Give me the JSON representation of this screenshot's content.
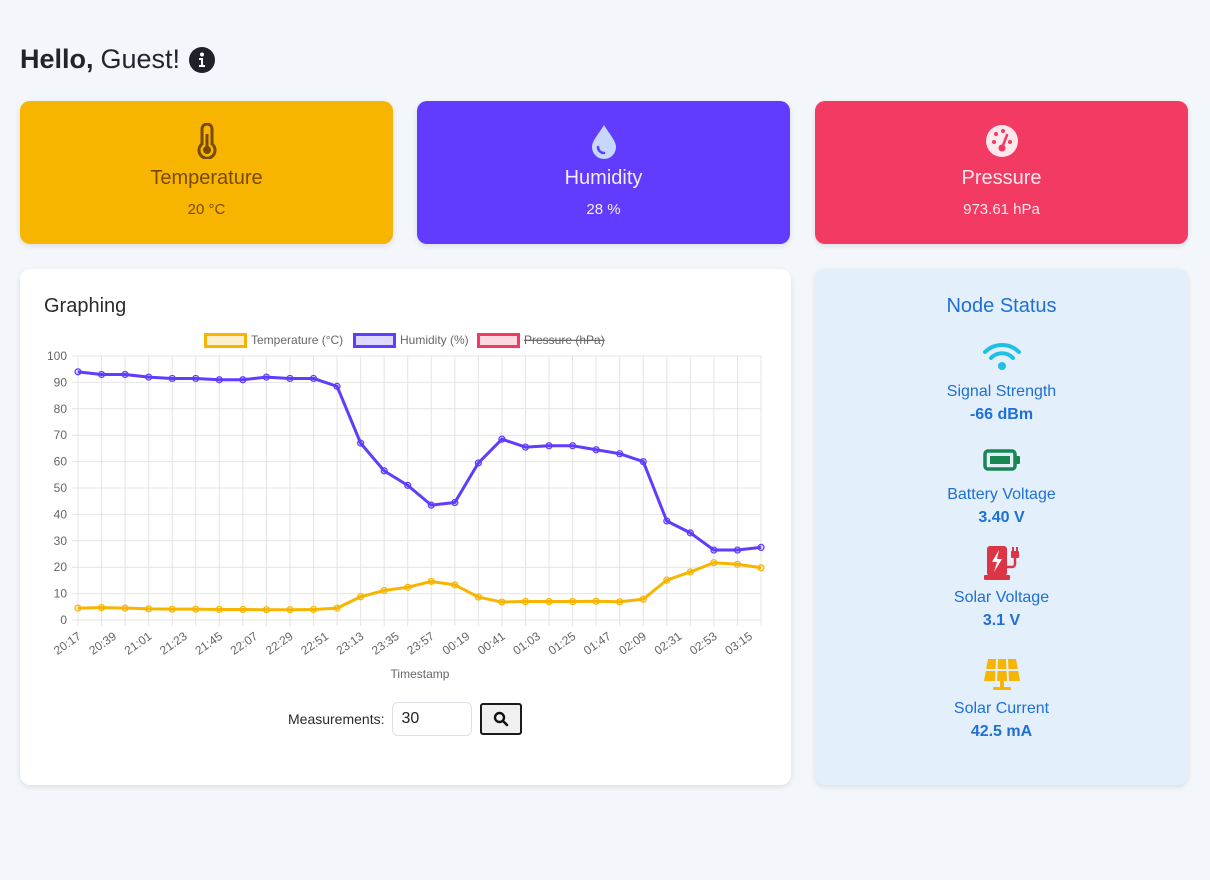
{
  "greeting": {
    "hello": "Hello,",
    "name": "Guest!"
  },
  "icons": {
    "info": "info-circle-icon"
  },
  "cards": {
    "temperature": {
      "label": "Temperature",
      "value": "20 °C",
      "icon": "thermometer-icon",
      "color": "#f7b500"
    },
    "humidity": {
      "label": "Humidity",
      "value": "28 %",
      "icon": "droplet-icon",
      "color": "#613cff"
    },
    "pressure": {
      "label": "Pressure",
      "value": "973.61 hPa",
      "icon": "gauge-icon",
      "color": "#f23a62"
    }
  },
  "graph": {
    "title": "Graphing",
    "measurements_label": "Measurements:",
    "measurements_value": "30",
    "search_icon": "search-icon"
  },
  "chart_data": {
    "type": "line",
    "xlabel": "Timestamp",
    "ylabel": "",
    "ylim": [
      0,
      100
    ],
    "yticks": [
      0,
      10,
      20,
      30,
      40,
      50,
      60,
      70,
      80,
      90,
      100
    ],
    "grid": true,
    "legend_position": "top",
    "x_tick_labels": [
      "20:17",
      "20:39",
      "21:01",
      "21:23",
      "21:45",
      "22:07",
      "22:29",
      "22:51",
      "23:13",
      "23:35",
      "23:57",
      "00:19",
      "00:41",
      "01:03",
      "01:25",
      "01:47",
      "02:09",
      "02:31",
      "02:53",
      "03:15"
    ],
    "series": [
      {
        "name": "Temperature (°C)",
        "color": "#f7b500",
        "hidden": false,
        "values": [
          4.5,
          4.7,
          4.5,
          4.2,
          4.1,
          4.1,
          4.0,
          4.0,
          3.9,
          3.9,
          4.0,
          4.5,
          8.8,
          11.2,
          12.4,
          14.6,
          13.3,
          8.7,
          6.8,
          7.0,
          7.0,
          7.0,
          7.1,
          6.9,
          7.9,
          15.1,
          18.2,
          21.7,
          21.1,
          19.8
        ]
      },
      {
        "name": "Humidity (%)",
        "color": "#613cff",
        "hidden": false,
        "values": [
          94,
          93,
          93,
          92,
          91.5,
          91.5,
          91,
          91,
          92,
          91.5,
          91.5,
          88.5,
          67,
          56.5,
          51,
          43.5,
          44.5,
          59.5,
          68.5,
          65.5,
          66,
          66,
          64.5,
          63,
          60,
          37.5,
          33,
          26.5,
          26.5,
          27.5
        ]
      },
      {
        "name": "Pressure (hPa)",
        "color": "#f23a62",
        "hidden": true,
        "values": []
      }
    ]
  },
  "node_status": {
    "title": "Node Status",
    "items": [
      {
        "label": "Signal Strength",
        "value": "-66 dBm",
        "icon": "wifi-icon",
        "color": "#1ec0e6"
      },
      {
        "label": "Battery Voltage",
        "value": "3.40 V",
        "icon": "battery-icon",
        "color": "#198754"
      },
      {
        "label": "Solar Voltage",
        "value": "3.1 V",
        "icon": "charging-station-icon",
        "color": "#dc3545"
      },
      {
        "label": "Solar Current",
        "value": "42.5 mA",
        "icon": "solar-panel-icon",
        "color": "#f7b500"
      }
    ]
  }
}
